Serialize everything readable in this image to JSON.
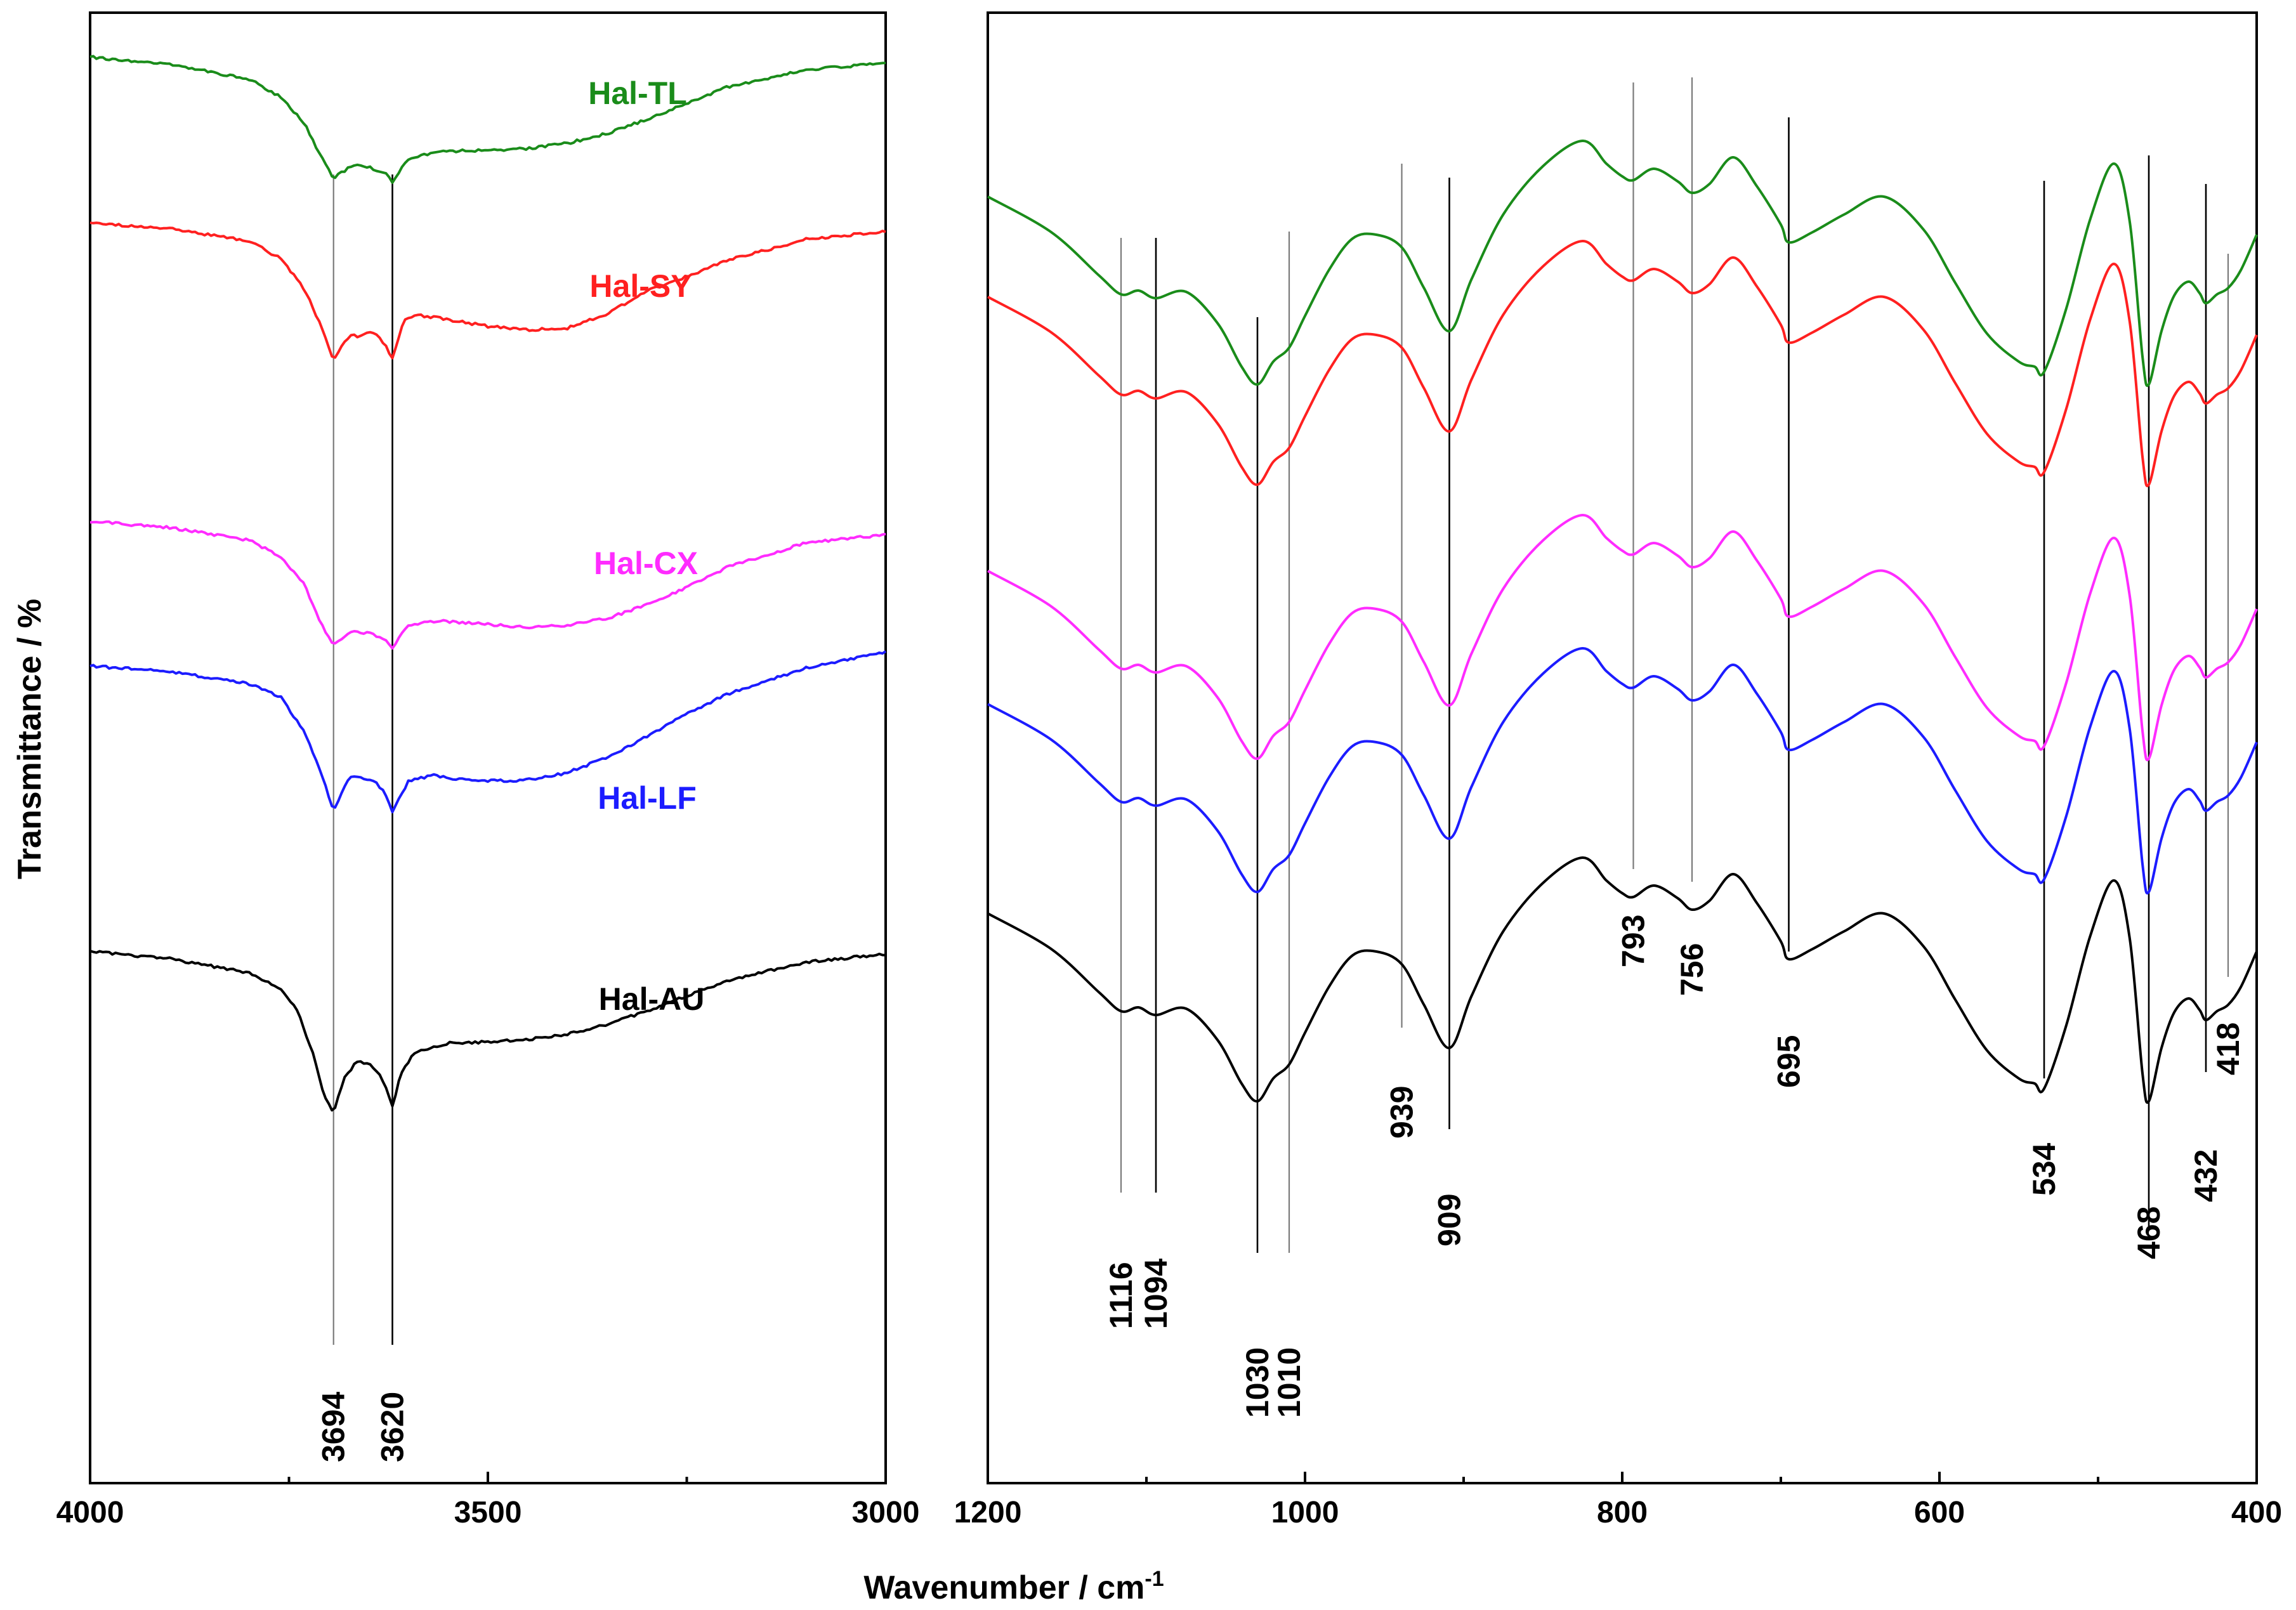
{
  "chart_data": {
    "type": "line",
    "title": "",
    "ylabel": "Transmittance / %",
    "xlabel_main": "Wavenumber / cm",
    "xlabel_sup": "-1",
    "series_order_top_to_bottom": [
      "Hal-TL",
      "Hal-SY",
      "Hal-CX",
      "Hal-LF",
      "Hal-AU"
    ],
    "series_colors": {
      "Hal-TL": "#1a8c1a",
      "Hal-SY": "#ff2020",
      "Hal-CX": "#ff2cff",
      "Hal-LF": "#1c1cff",
      "Hal-AU": "#000000"
    },
    "panels": [
      {
        "name": "high-wavenumber",
        "xlim": [
          4000,
          3000
        ],
        "x_ticks": [
          "4000",
          "3500",
          "3000"
        ],
        "x_tick_values": [
          4000,
          3500,
          3000
        ],
        "peak_labels": [
          "3694",
          "3620"
        ],
        "peak_values": [
          3694,
          3620
        ],
        "peak_line_style": [
          "grey",
          "black"
        ],
        "series": [
          {
            "name": "Hal-TL",
            "x": [
              4000,
              3900,
              3800,
              3760,
              3730,
              3710,
              3694,
              3670,
              3650,
              3630,
              3620,
              3600,
              3560,
              3500,
              3450,
              3400,
              3350,
              3300,
              3250,
              3200,
              3100,
              3000
            ],
            "y": [
              10,
              9.2,
              7.5,
              5.5,
              2.5,
              -1.2,
              -3.6,
              -2.2,
              -2.4,
              -3.0,
              -4.0,
              -1.5,
              -0.6,
              -0.5,
              -0.3,
              0.3,
              1.4,
              3.0,
              4.8,
              6.6,
              8.6,
              9.3
            ]
          },
          {
            "name": "Hal-SY",
            "x": [
              4000,
              3900,
              3800,
              3760,
              3730,
              3710,
              3694,
              3680,
              3670,
              3660,
              3650,
              3640,
              3630,
              3620,
              3605,
              3590,
              3560,
              3500,
              3450,
              3400,
              3350,
              3300,
              3250,
              3200,
              3100,
              3000
            ],
            "y": [
              10,
              9.4,
              8.0,
              6.0,
              2.5,
              -1.5,
              -5.6,
              -3.2,
              -2.6,
              -2.8,
              -2.3,
              -2.6,
              -3.6,
              -5.3,
              -0.8,
              -0.3,
              -0.7,
              -1.6,
              -2.0,
              -1.8,
              -0.2,
              2.4,
              4.0,
              5.8,
              8.2,
              9.1
            ]
          },
          {
            "name": "Hal-CX",
            "x": [
              4000,
              3900,
              3800,
              3760,
              3730,
              3710,
              3694,
              3670,
              3650,
              3630,
              3620,
              3600,
              3560,
              3500,
              3450,
              3400,
              3350,
              3300,
              3250,
              3200,
              3100,
              3000
            ],
            "y": [
              10,
              9.3,
              7.9,
              6.0,
              2.8,
              -1.5,
              -3.9,
              -2.4,
              -2.6,
              -3.2,
              -4.3,
              -1.6,
              -1.2,
              -1.6,
              -1.9,
              -1.7,
              -0.9,
              0.6,
              2.6,
              4.8,
              7.6,
              8.5
            ]
          },
          {
            "name": "Hal-LF",
            "x": [
              4000,
              3900,
              3800,
              3760,
              3730,
              3710,
              3694,
              3675,
              3665,
              3650,
              3640,
              3630,
              3620,
              3600,
              3570,
              3540,
              3500,
              3470,
              3440,
              3400,
              3350,
              3300,
              3250,
              3200,
              3100,
              3000
            ],
            "y": [
              10,
              9.4,
              8.0,
              6.5,
              2.5,
              -2.0,
              -6.2,
              -2.6,
              -2.4,
              -2.7,
              -3.2,
              -4.3,
              -6.3,
              -3.0,
              -2.3,
              -2.7,
              -2.9,
              -2.9,
              -2.7,
              -2.0,
              -0.3,
              2.1,
              4.6,
              6.8,
              9.8,
              11.6
            ]
          },
          {
            "name": "Hal-AU",
            "x": [
              4000,
              3900,
              3800,
              3760,
              3740,
              3720,
              3705,
              3694,
              3680,
              3665,
              3650,
              3640,
              3630,
              3620,
              3610,
              3595,
              3580,
              3550,
              3500,
              3450,
              3400,
              3350,
              3300,
              3250,
              3200,
              3100,
              3000
            ],
            "y": [
              10,
              9.2,
              7.6,
              5.8,
              3.5,
              -1.5,
              -6.5,
              -8.1,
              -4.2,
              -2.4,
              -2.6,
              -3.4,
              -4.8,
              -7.5,
              -4.0,
              -1.6,
              -1.0,
              -0.3,
              -0.2,
              0.1,
              0.7,
              1.8,
              3.3,
              5.0,
              6.7,
              8.8,
              9.7
            ]
          }
        ],
        "series_label_text": [
          "Hal-TL",
          "Hal-SY",
          "Hal-CX",
          "Hal-LF",
          "Hal-AU"
        ]
      },
      {
        "name": "low-wavenumber",
        "xlim": [
          1200,
          400
        ],
        "x_ticks": [
          "1200",
          "1000",
          "800",
          "600",
          "400"
        ],
        "x_tick_values": [
          1200,
          1000,
          800,
          600,
          400
        ],
        "peak_labels": [
          "1116",
          "1094",
          "1030",
          "1010",
          "939",
          "909",
          "793",
          "756",
          "695",
          "534",
          "468",
          "432",
          "418"
        ],
        "peak_values": [
          1116,
          1094,
          1030,
          1010,
          939,
          909,
          793,
          756,
          695,
          534,
          468,
          432,
          418
        ],
        "peak_line_style": [
          "grey",
          "black",
          "black",
          "grey",
          "grey",
          "black",
          "grey",
          "grey",
          "black",
          "black",
          "black",
          "black",
          "grey"
        ],
        "series_shape": {
          "x": [
            1200,
            1160,
            1130,
            1116,
            1105,
            1094,
            1075,
            1055,
            1040,
            1030,
            1020,
            1010,
            1000,
            985,
            970,
            955,
            939,
            925,
            909,
            895,
            875,
            850,
            825,
            810,
            800,
            793,
            780,
            765,
            756,
            745,
            730,
            715,
            700,
            695,
            680,
            660,
            635,
            610,
            590,
            570,
            550,
            540,
            534,
            520,
            505,
            490,
            480,
            472,
            468,
            460,
            452,
            443,
            436,
            432,
            425,
            418,
            410,
            400
          ],
          "y": [
            10,
            7.2,
            3.8,
            2.3,
            2.6,
            2.0,
            2.5,
            0.0,
            -3.4,
            -4.8,
            -3.0,
            -1.9,
            0.6,
            4.2,
            6.7,
            7.0,
            6.0,
            2.8,
            -0.6,
            3.5,
            8.6,
            12.4,
            14.4,
            12.6,
            11.6,
            11.3,
            12.2,
            11.2,
            10.3,
            11.0,
            13.1,
            10.8,
            7.8,
            6.4,
            7.2,
            8.6,
            10.0,
            7.4,
            3.2,
            -0.8,
            -3.0,
            -3.4,
            -3.8,
            1.2,
            8.2,
            12.6,
            8.0,
            -2.6,
            -4.8,
            -0.6,
            2.2,
            3.3,
            2.4,
            1.6,
            2.3,
            2.8,
            4.2,
            7.0
          ]
        },
        "series_names": [
          "Hal-TL",
          "Hal-SY",
          "Hal-CX",
          "Hal-LF",
          "Hal-AU"
        ]
      }
    ],
    "y_axis_ticks": "none (arbitrary offset units)"
  }
}
